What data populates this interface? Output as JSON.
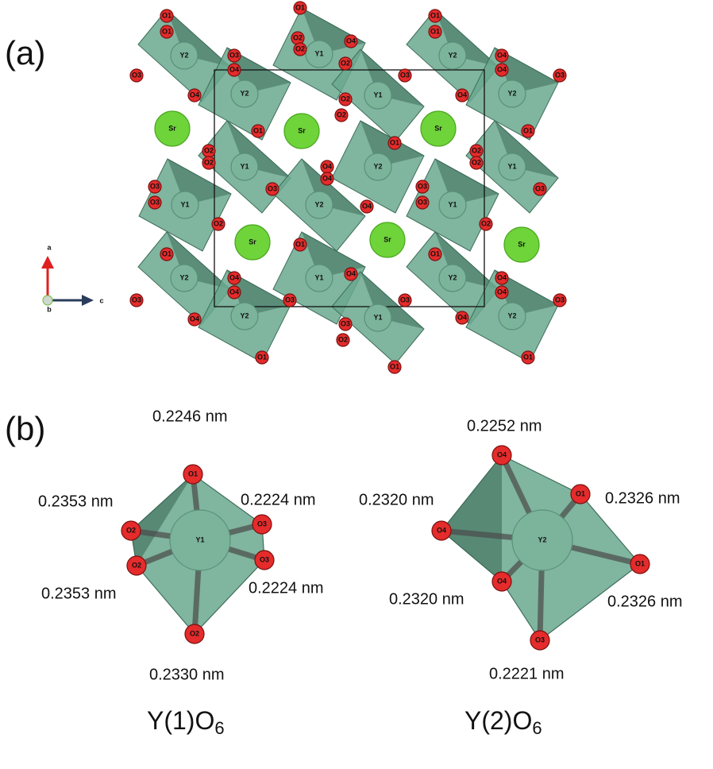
{
  "panel_a": {
    "label": "(a)",
    "sr": [
      "Sr",
      "Sr",
      "Sr",
      "Sr",
      "Sr",
      "Sr"
    ],
    "y": [
      "Y2",
      "Y1",
      "Y2",
      "Y2",
      "Y1",
      "Y2",
      "Y1",
      "Y2",
      "Y1",
      "Y1",
      "Y2",
      "Y1",
      "Y2",
      "Y1",
      "Y2",
      "Y2",
      "Y1",
      "Y2"
    ],
    "o": [
      "O1",
      "O1",
      "O3",
      "O4",
      "O3",
      "O4",
      "O1",
      "O2",
      "O2",
      "O4",
      "O2",
      "O2",
      "O2",
      "O1",
      "O1",
      "O4",
      "O4",
      "O3",
      "O4",
      "O3",
      "O1",
      "O1",
      "O1",
      "O2",
      "O2",
      "O3",
      "O4",
      "O4",
      "O4",
      "O2",
      "O2",
      "O3",
      "O3",
      "O3",
      "O2",
      "O3",
      "O3",
      "O2",
      "O1",
      "O1",
      "O1",
      "O4",
      "O4",
      "O3",
      "O4",
      "O4",
      "O3",
      "O3",
      "O3",
      "O4",
      "O4",
      "O3",
      "O4",
      "O1",
      "O1",
      "O1",
      "O2"
    ],
    "axes": {
      "a": "a",
      "b": "b",
      "c": "c"
    }
  },
  "panel_b": {
    "label": "(b)",
    "octahedra": [
      {
        "center": "Y1",
        "oxygens": [
          "O1",
          "O2",
          "O3",
          "O2",
          "O3",
          "O2"
        ],
        "distances": [
          "0.2246 nm",
          "0.2353 nm",
          "0.2224 nm",
          "0.2353 nm",
          "0.2224 nm",
          "0.2330 nm"
        ],
        "caption": {
          "main": "Y(1)O",
          "sub": "6"
        }
      },
      {
        "center": "Y2",
        "oxygens": [
          "O4",
          "O4",
          "O1",
          "O1",
          "O4",
          "O3"
        ],
        "distances": [
          "0.2252 nm",
          "0.2320 nm",
          "0.2326 nm",
          "0.2320 nm",
          "0.2326 nm",
          "0.2221 nm"
        ],
        "caption": {
          "main": "Y(2)O",
          "sub": "6"
        }
      }
    ]
  }
}
